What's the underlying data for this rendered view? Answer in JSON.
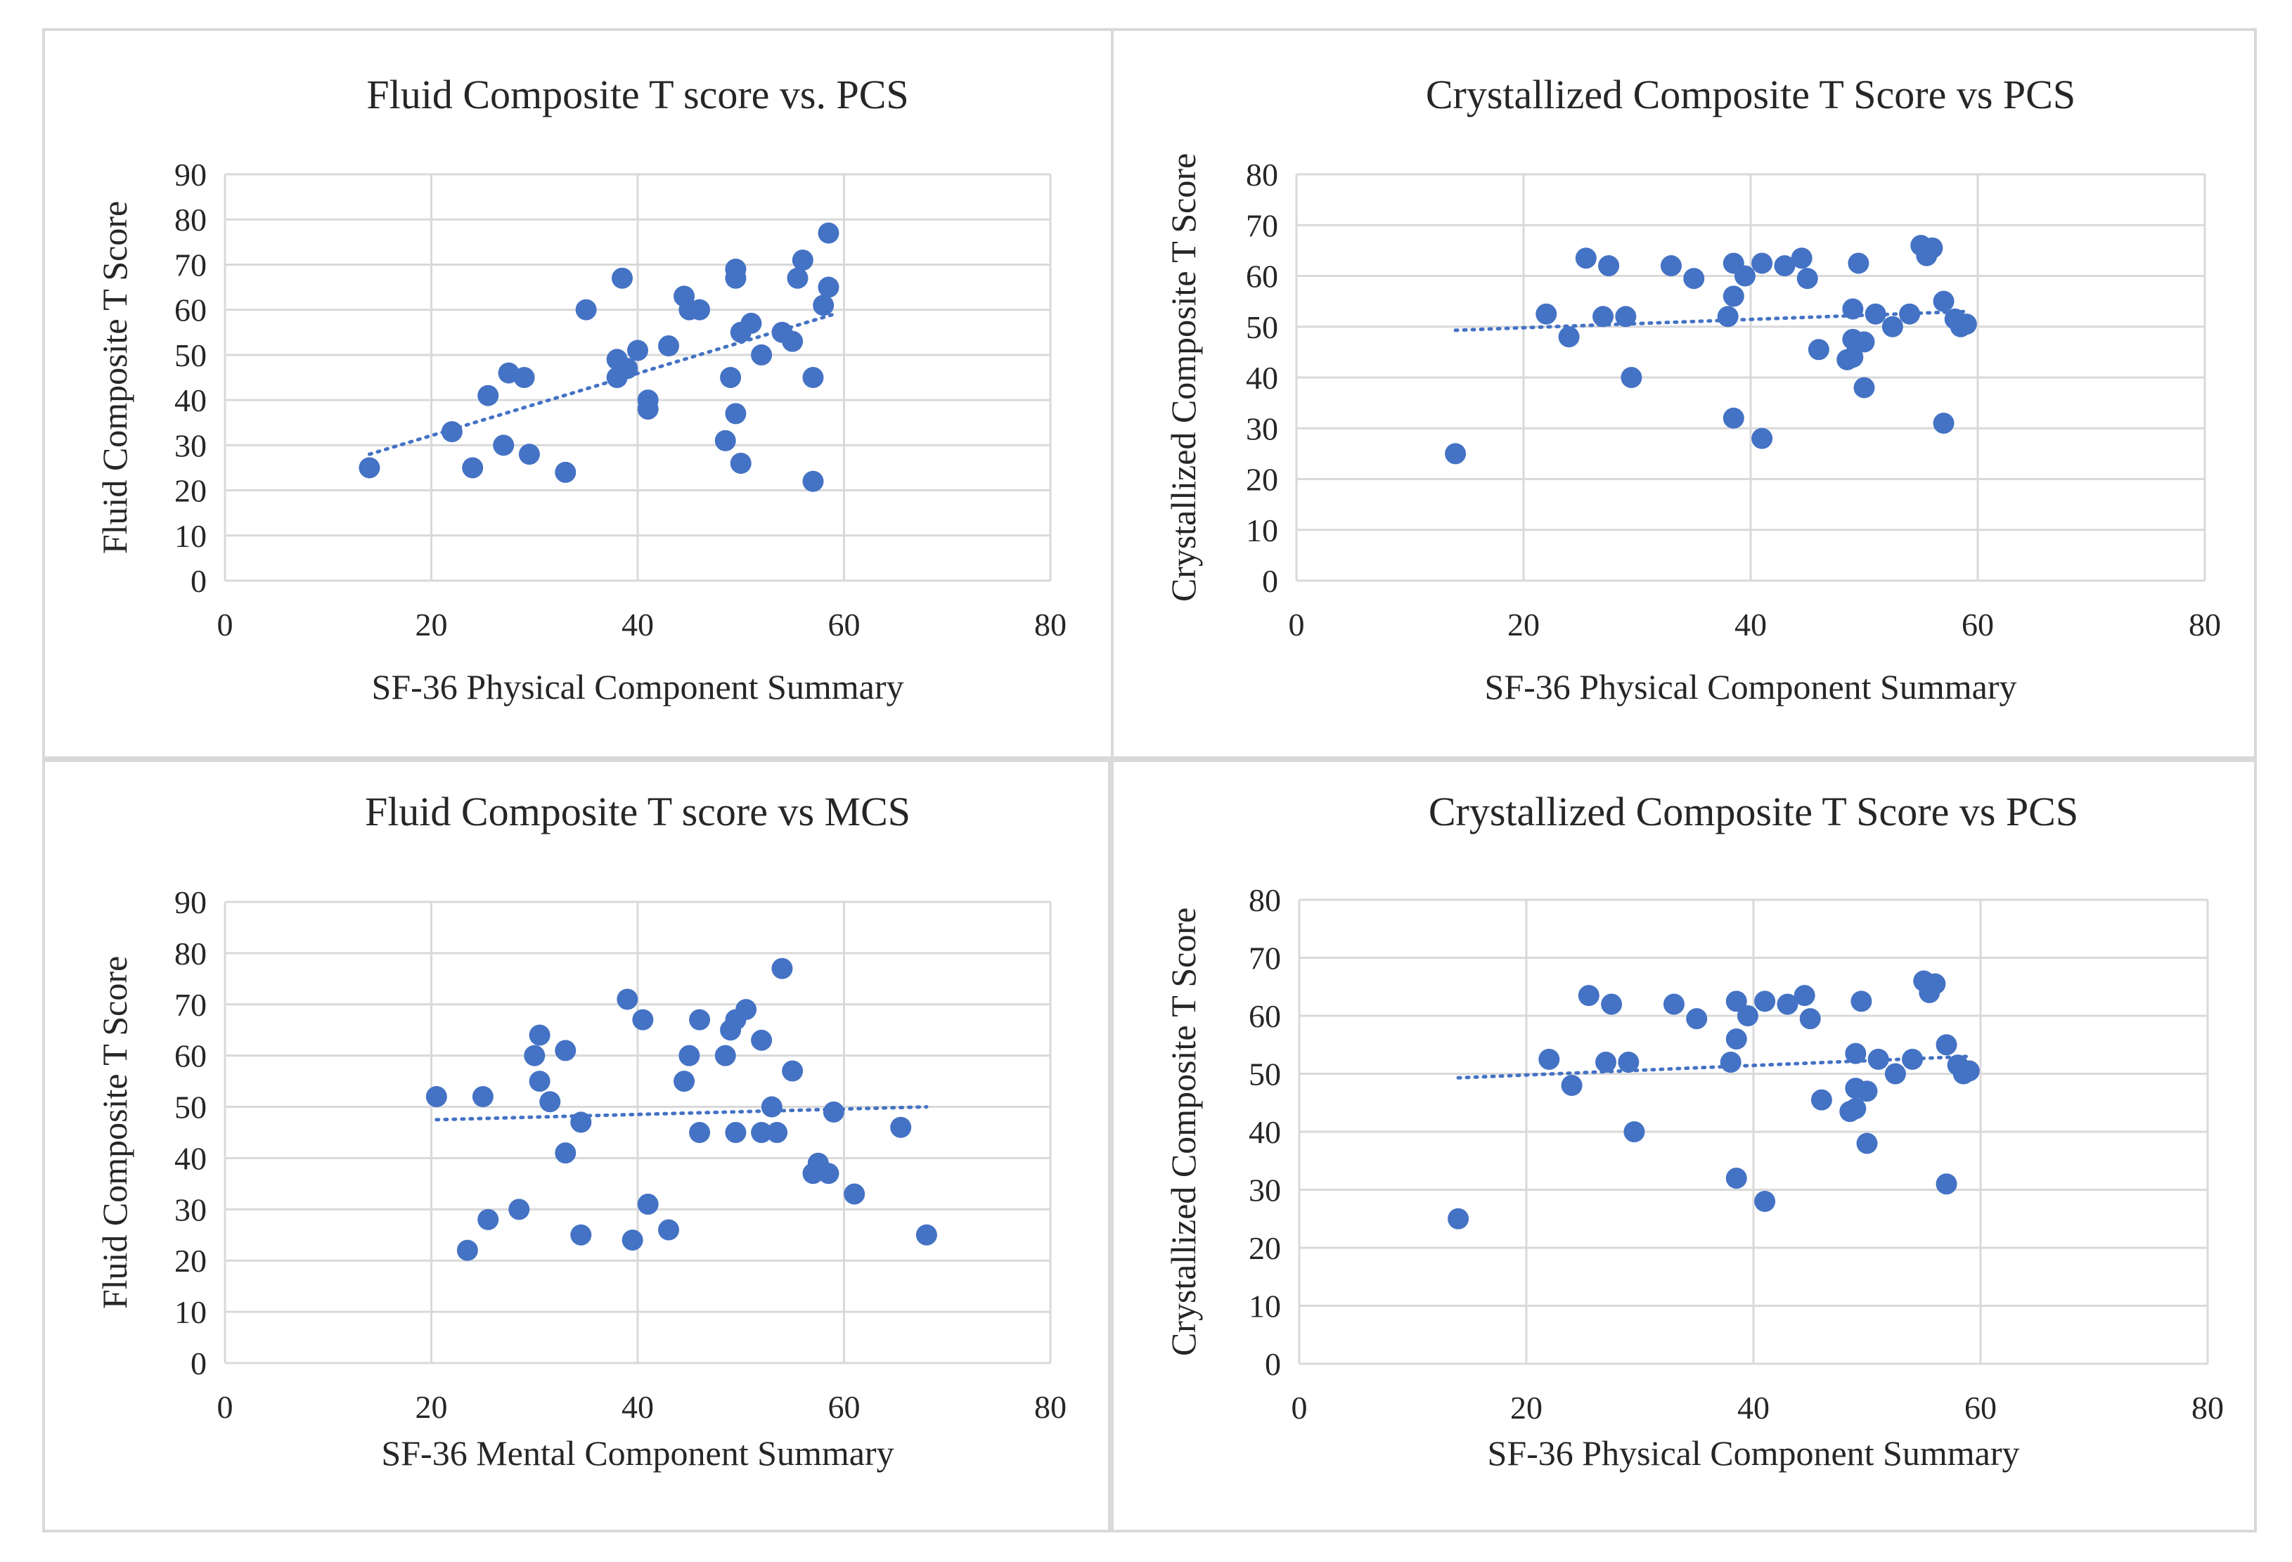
{
  "chart_data": [
    {
      "id": "tl",
      "type": "scatter",
      "title": "Fluid  Composite  T score vs. PCS",
      "xlabel": "SF-36 Physical Component Summary",
      "ylabel": "Fluid Composite T Score",
      "xlim": [
        0,
        80
      ],
      "ylim": [
        0,
        90
      ],
      "xticks": [
        0,
        20,
        40,
        60,
        80
      ],
      "yticks": [
        0,
        10,
        20,
        30,
        40,
        50,
        60,
        70,
        80,
        90
      ],
      "grid": true,
      "trendline": {
        "x": [
          14,
          59
        ],
        "y": [
          28,
          59
        ]
      },
      "points": [
        [
          14,
          25
        ],
        [
          22,
          33
        ],
        [
          24,
          25
        ],
        [
          25.5,
          41
        ],
        [
          27,
          30
        ],
        [
          27.5,
          46
        ],
        [
          29,
          45
        ],
        [
          29.5,
          28
        ],
        [
          33,
          24
        ],
        [
          35,
          60
        ],
        [
          38,
          45
        ],
        [
          38,
          49
        ],
        [
          38.5,
          67
        ],
        [
          39,
          47
        ],
        [
          40,
          51
        ],
        [
          41,
          40
        ],
        [
          41,
          38
        ],
        [
          43,
          52
        ],
        [
          44.5,
          63
        ],
        [
          45,
          60
        ],
        [
          46,
          60
        ],
        [
          48.5,
          31
        ],
        [
          49,
          45
        ],
        [
          49.5,
          67
        ],
        [
          49.5,
          69
        ],
        [
          49.5,
          37
        ],
        [
          50,
          26
        ],
        [
          50,
          55
        ],
        [
          51,
          57
        ],
        [
          52,
          50
        ],
        [
          54,
          55
        ],
        [
          55,
          53
        ],
        [
          55.5,
          67
        ],
        [
          56,
          71
        ],
        [
          57,
          45
        ],
        [
          57,
          22
        ],
        [
          58,
          61
        ],
        [
          58.5,
          65
        ],
        [
          58.5,
          77
        ]
      ]
    },
    {
      "id": "tr",
      "type": "scatter",
      "title": "Crystallized   Composite  T Score vs PCS",
      "xlabel": "SF-36 Physical Component Summary",
      "ylabel": "Crystallized Composite T Score",
      "xlim": [
        0,
        80
      ],
      "ylim": [
        0,
        80
      ],
      "xticks": [
        0,
        20,
        40,
        60,
        80
      ],
      "yticks": [
        0,
        10,
        20,
        30,
        40,
        50,
        60,
        70,
        80
      ],
      "grid": true,
      "trendline": {
        "x": [
          14,
          59
        ],
        "y": [
          49.3,
          53
        ]
      },
      "points": [
        [
          14,
          25
        ],
        [
          22,
          52.5
        ],
        [
          24,
          48
        ],
        [
          25.5,
          63.5
        ],
        [
          27,
          52
        ],
        [
          27.5,
          62
        ],
        [
          29,
          52
        ],
        [
          29.5,
          40
        ],
        [
          33,
          62
        ],
        [
          35,
          59.5
        ],
        [
          38,
          52
        ],
        [
          38.5,
          32
        ],
        [
          38.5,
          56
        ],
        [
          38.5,
          62.5
        ],
        [
          39.5,
          60
        ],
        [
          41,
          28
        ],
        [
          41,
          62.5
        ],
        [
          43,
          62
        ],
        [
          44.5,
          63.5
        ],
        [
          45,
          59.5
        ],
        [
          46,
          45.5
        ],
        [
          48.5,
          43.5
        ],
        [
          49,
          47.5
        ],
        [
          49,
          44
        ],
        [
          49,
          53.5
        ],
        [
          49.5,
          62.5
        ],
        [
          50,
          38
        ],
        [
          50,
          47
        ],
        [
          51,
          52.5
        ],
        [
          52.5,
          50
        ],
        [
          54,
          52.5
        ],
        [
          55,
          66
        ],
        [
          55.5,
          64
        ],
        [
          56,
          65.5
        ],
        [
          57,
          31
        ],
        [
          57,
          55
        ],
        [
          58,
          51.5
        ],
        [
          58.5,
          50
        ],
        [
          59,
          50.5
        ]
      ]
    },
    {
      "id": "bl",
      "type": "scatter",
      "title": "Fluid  Composite  T score vs MCS",
      "xlabel": "SF-36 Mental Component Summary",
      "ylabel": "Fluid Composite T Score",
      "xlim": [
        0,
        80
      ],
      "ylim": [
        0,
        90
      ],
      "xticks": [
        0,
        20,
        40,
        60,
        80
      ],
      "yticks": [
        0,
        10,
        20,
        30,
        40,
        50,
        60,
        70,
        80,
        90
      ],
      "grid": true,
      "trendline": {
        "x": [
          20.5,
          68
        ],
        "y": [
          47.5,
          50
        ]
      },
      "points": [
        [
          20.5,
          52
        ],
        [
          23.5,
          22
        ],
        [
          25,
          52
        ],
        [
          25.5,
          28
        ],
        [
          28.5,
          30
        ],
        [
          30,
          60
        ],
        [
          30.5,
          64
        ],
        [
          30.5,
          55
        ],
        [
          31.5,
          51
        ],
        [
          33,
          41
        ],
        [
          33,
          61
        ],
        [
          34.5,
          25
        ],
        [
          34.5,
          47
        ],
        [
          39,
          71
        ],
        [
          39.5,
          24
        ],
        [
          40.5,
          67
        ],
        [
          41,
          31
        ],
        [
          43,
          26
        ],
        [
          44.5,
          55
        ],
        [
          45,
          60
        ],
        [
          46,
          67
        ],
        [
          46,
          45
        ],
        [
          48.5,
          60
        ],
        [
          49,
          65
        ],
        [
          49.5,
          67
        ],
        [
          49.5,
          45
        ],
        [
          50.5,
          69
        ],
        [
          52,
          45
        ],
        [
          52,
          63
        ],
        [
          53,
          50
        ],
        [
          53.5,
          45
        ],
        [
          54,
          77
        ],
        [
          55,
          57
        ],
        [
          57,
          37
        ],
        [
          57.5,
          39
        ],
        [
          58.5,
          37
        ],
        [
          59,
          49
        ],
        [
          61,
          33
        ],
        [
          65.5,
          46
        ],
        [
          68,
          25
        ]
      ]
    },
    {
      "id": "br",
      "type": "scatter",
      "title": "Crystallized   Composite  T Score vs PCS",
      "xlabel": "SF-36 Physical Component Summary",
      "ylabel": "Crystallized Composite T Score",
      "xlim": [
        0,
        80
      ],
      "ylim": [
        0,
        80
      ],
      "xticks": [
        0,
        20,
        40,
        60,
        80
      ],
      "yticks": [
        0,
        10,
        20,
        30,
        40,
        50,
        60,
        70,
        80
      ],
      "grid": true,
      "trendline": {
        "x": [
          14,
          59
        ],
        "y": [
          49.3,
          53
        ]
      },
      "points": [
        [
          14,
          25
        ],
        [
          22,
          52.5
        ],
        [
          24,
          48
        ],
        [
          25.5,
          63.5
        ],
        [
          27,
          52
        ],
        [
          27.5,
          62
        ],
        [
          29,
          52
        ],
        [
          29.5,
          40
        ],
        [
          33,
          62
        ],
        [
          35,
          59.5
        ],
        [
          38,
          52
        ],
        [
          38.5,
          32
        ],
        [
          38.5,
          56
        ],
        [
          38.5,
          62.5
        ],
        [
          39.5,
          60
        ],
        [
          41,
          28
        ],
        [
          41,
          62.5
        ],
        [
          43,
          62
        ],
        [
          44.5,
          63.5
        ],
        [
          45,
          59.5
        ],
        [
          46,
          45.5
        ],
        [
          48.5,
          43.5
        ],
        [
          49,
          47.5
        ],
        [
          49,
          44
        ],
        [
          49,
          53.5
        ],
        [
          49.5,
          62.5
        ],
        [
          50,
          38
        ],
        [
          50,
          47
        ],
        [
          51,
          52.5
        ],
        [
          52.5,
          50
        ],
        [
          54,
          52.5
        ],
        [
          55,
          66
        ],
        [
          55.5,
          64
        ],
        [
          56,
          65.5
        ],
        [
          57,
          31
        ],
        [
          57,
          55
        ],
        [
          58,
          51.5
        ],
        [
          58.5,
          50
        ],
        [
          59,
          50.5
        ]
      ]
    }
  ]
}
